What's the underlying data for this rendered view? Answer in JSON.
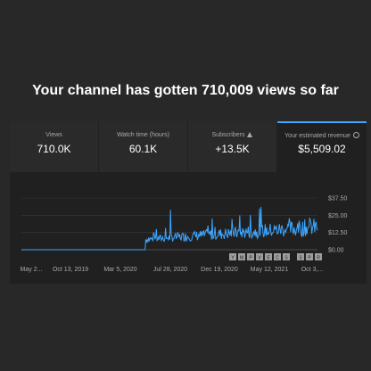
{
  "headline": "Your channel has gotten 710,009 views so far",
  "metrics": [
    {
      "label": "Views",
      "value": "710.0K",
      "icon": ""
    },
    {
      "label": "Watch time (hours)",
      "value": "60.1K",
      "icon": ""
    },
    {
      "label": "Subscribers",
      "value": "+13.5K",
      "icon": "warning-icon"
    },
    {
      "label": "Your estimated revenue",
      "value": "$5,509.02",
      "icon": "clock-icon"
    }
  ],
  "colors": {
    "line": "#3ea6ff",
    "accent": "#3ea6ff",
    "grid": "#3a3a3a",
    "background": "#202020"
  },
  "chart_data": {
    "type": "line",
    "ylabels": [
      "$37.50",
      "$25.00",
      "$12.50",
      "$0.00"
    ],
    "yticks": [
      37.5,
      25,
      12.5,
      0
    ],
    "ylim": [
      0,
      37.5
    ],
    "xlabels": [
      "May 2...",
      "Oct 13, 2019",
      "Mar 5, 2020",
      "Jul 28, 2020",
      "Dec 19, 2020",
      "May 12, 2021",
      "Oct 3,..."
    ],
    "series": [
      {
        "values_description_free": true,
        "flat_until_fraction": 0.42,
        "flat_value": 0,
        "step_value": 5,
        "base_value": 10,
        "peak_value": 31
      }
    ]
  },
  "markers": [
    "Y",
    "M",
    "P",
    "V",
    "E",
    "C",
    "S",
    "S",
    "P",
    "R"
  ]
}
